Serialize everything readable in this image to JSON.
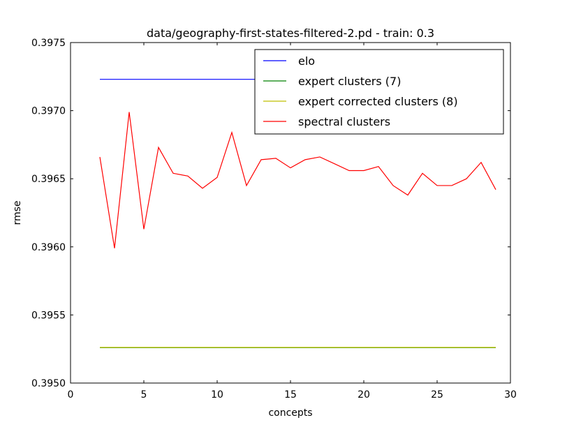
{
  "chart_data": {
    "type": "line",
    "title": "data/geography-first-states-filtered-2.pd - train: 0.3",
    "xlabel": "concepts",
    "ylabel": "rmse",
    "xlim": [
      0,
      30
    ],
    "ylim": [
      0.395,
      0.3975
    ],
    "xticks": [
      0,
      5,
      10,
      15,
      20,
      25,
      30
    ],
    "xtick_labels": [
      "0",
      "5",
      "10",
      "15",
      "20",
      "25",
      "30"
    ],
    "yticks": [
      0.395,
      0.3955,
      0.396,
      0.3965,
      0.397,
      0.3975
    ],
    "ytick_labels": [
      "0.3950",
      "0.3955",
      "0.3960",
      "0.3965",
      "0.3970",
      "0.3975"
    ],
    "grid": false,
    "legend_position": "top-right",
    "series": [
      {
        "name": "elo",
        "color": "#0000ff",
        "x": [
          2,
          29
        ],
        "y": [
          0.39723,
          0.39723
        ]
      },
      {
        "name": "expert clusters (7)",
        "color": "#008000",
        "x": [
          2,
          29
        ],
        "y": [
          0.39526,
          0.39526
        ]
      },
      {
        "name": "expert corrected clusters (8)",
        "color": "#bfbf00",
        "x": [
          2,
          29
        ],
        "y": [
          0.395262,
          0.395262
        ]
      },
      {
        "name": "spectral clusters",
        "color": "#ff0000",
        "x": [
          2,
          3,
          4,
          5,
          6,
          7,
          8,
          9,
          10,
          11,
          12,
          13,
          14,
          15,
          16,
          17,
          18,
          19,
          20,
          21,
          22,
          23,
          24,
          25,
          26,
          27,
          28,
          29
        ],
        "y": [
          0.39666,
          0.39599,
          0.39699,
          0.39613,
          0.39673,
          0.39654,
          0.39652,
          0.39643,
          0.39651,
          0.39684,
          0.39645,
          0.39664,
          0.39665,
          0.39658,
          0.39664,
          0.39666,
          0.39661,
          0.39656,
          0.39656,
          0.39659,
          0.39645,
          0.39638,
          0.39654,
          0.39645,
          0.39645,
          0.3965,
          0.39662,
          0.39642
        ]
      }
    ]
  }
}
